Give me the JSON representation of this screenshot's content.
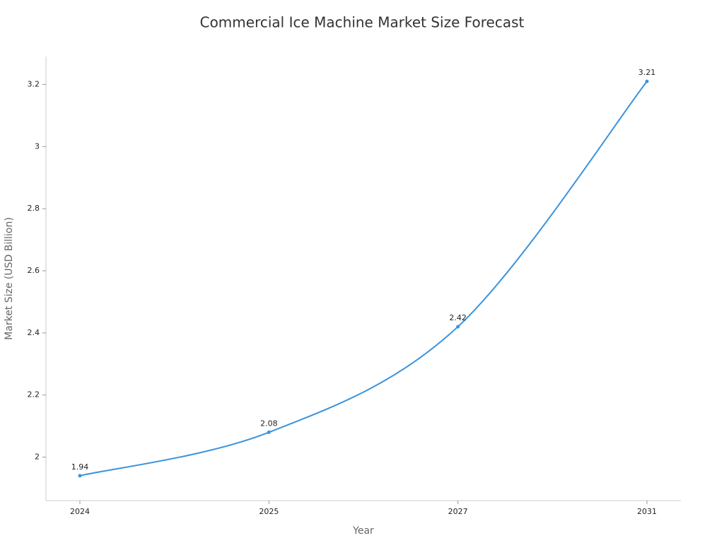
{
  "chart_data": {
    "type": "line",
    "title": "Commercial Ice Machine Market Size Forecast",
    "x_label": "Year",
    "y_label": "Market Size (USD Billion)",
    "categories": [
      "2024",
      "2025",
      "2027",
      "2031"
    ],
    "series": [
      {
        "name": "Market Size",
        "color": "#3a93dd",
        "values": [
          1.94,
          2.08,
          2.42,
          3.21
        ]
      }
    ],
    "ylim": [
      1.86,
      3.29
    ],
    "yticks": [
      2,
      2.2,
      2.4,
      2.6,
      2.8,
      3,
      3.2
    ],
    "grid": false,
    "smooth": true
  }
}
